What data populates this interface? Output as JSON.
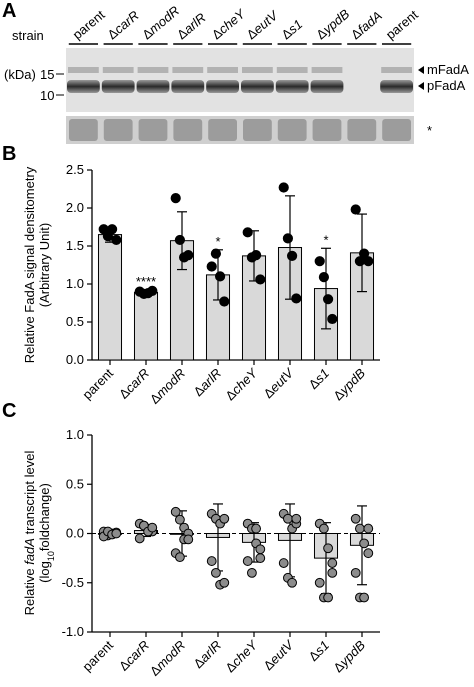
{
  "panels": {
    "a": "A",
    "b": "B",
    "c": "C"
  },
  "blot": {
    "strain_label": "strain",
    "lanes": [
      {
        "delta": "",
        "name": "parent"
      },
      {
        "delta": "Δ",
        "name": "carR"
      },
      {
        "delta": "Δ",
        "name": "modR"
      },
      {
        "delta": "Δ",
        "name": "arlR"
      },
      {
        "delta": "Δ",
        "name": "cheY"
      },
      {
        "delta": "Δ",
        "name": "eutV"
      },
      {
        "delta": "Δ",
        "name": "s1"
      },
      {
        "delta": "Δ",
        "name": "ypdB"
      },
      {
        "delta": "Δ",
        "name": "fadA"
      },
      {
        "delta": "",
        "name": "parent"
      }
    ],
    "kda_label": "(kDa)",
    "markers": [
      "15",
      "10"
    ],
    "band_labels": [
      "mFadA",
      "pFadA"
    ],
    "loading_asterisk": "*"
  },
  "chart_data": [
    {
      "type": "bar",
      "ylabel_line1": "Relative FadA signal densitometry",
      "ylabel_line2": "(Arbitrary Unit)",
      "ylim": [
        0,
        2.5
      ],
      "yticks": [
        "0.0",
        "0.5",
        "1.0",
        "1.5",
        "2.0",
        "2.5"
      ],
      "categories": [
        {
          "delta": "",
          "name": "parent"
        },
        {
          "delta": "Δ",
          "name": "carR"
        },
        {
          "delta": "Δ",
          "name": "modR"
        },
        {
          "delta": "Δ",
          "name": "arlR"
        },
        {
          "delta": "Δ",
          "name": "cheY"
        },
        {
          "delta": "Δ",
          "name": "eutV"
        },
        {
          "delta": "Δ",
          "name": "s1"
        },
        {
          "delta": "Δ",
          "name": "ypdB"
        }
      ],
      "means": [
        1.65,
        0.89,
        1.57,
        1.12,
        1.37,
        1.48,
        0.94,
        1.41
      ],
      "sd": [
        0.1,
        0.03,
        0.38,
        0.33,
        0.33,
        0.68,
        0.53,
        0.51
      ],
      "points": [
        [
          1.72,
          1.63,
          1.72,
          1.58
        ],
        [
          0.9,
          0.87,
          0.88,
          0.91
        ],
        [
          2.13,
          1.58,
          1.35,
          1.38
        ],
        [
          1.23,
          1.4,
          1.1,
          0.77
        ],
        [
          1.68,
          1.35,
          1.38,
          1.06
        ],
        [
          2.27,
          1.6,
          1.37,
          0.81
        ],
        [
          1.3,
          1.09,
          0.8,
          0.54
        ],
        [
          1.98,
          1.3,
          1.4,
          1.3
        ]
      ],
      "significance": [
        "",
        "****",
        "",
        "*",
        "",
        "",
        "*",
        ""
      ],
      "bar_color": "#d9d9d9"
    },
    {
      "type": "bar",
      "ylabel_line1_pre": "Relative ",
      "ylabel_line1_ital": "fadA",
      "ylabel_line1_post": " transcript level",
      "ylabel_line2_pre": "(log",
      "ylabel_line2_sub": "10",
      "ylabel_line2_post": "foldchange)",
      "ylim": [
        -1.0,
        1.0
      ],
      "yticks": [
        "-1.0",
        "-0.5",
        "0.0",
        "0.5",
        "1.0"
      ],
      "categories": [
        {
          "delta": "",
          "name": "parent"
        },
        {
          "delta": "Δ",
          "name": "carR"
        },
        {
          "delta": "Δ",
          "name": "modR"
        },
        {
          "delta": "Δ",
          "name": "arlR"
        },
        {
          "delta": "Δ",
          "name": "cheY"
        },
        {
          "delta": "Δ",
          "name": "eutV"
        },
        {
          "delta": "Δ",
          "name": "s1"
        },
        {
          "delta": "Δ",
          "name": "ypdB"
        }
      ],
      "means": [
        0.0,
        0.03,
        0.0,
        -0.04,
        -0.09,
        -0.07,
        -0.25,
        -0.12
      ],
      "sd": [
        0.02,
        0.06,
        0.23,
        0.34,
        0.2,
        0.37,
        0.36,
        0.4
      ],
      "points": [
        [
          0.02,
          -0.02,
          0.0,
          0.01,
          -0.03,
          0.02,
          -0.01,
          0.0
        ],
        [
          0.1,
          0.08,
          0.04,
          0.02,
          -0.05,
          0.08,
          0.02,
          0.06
        ],
        [
          0.22,
          0.14,
          0.06,
          0.0,
          -0.2,
          -0.24,
          -0.06,
          -0.06
        ],
        [
          0.2,
          0.15,
          0.1,
          0.15,
          -0.28,
          -0.4,
          -0.52,
          -0.5
        ],
        [
          0.1,
          0.05,
          -0.1,
          -0.25,
          -0.28,
          -0.4,
          0.05,
          -0.16
        ],
        [
          0.2,
          0.15,
          0.05,
          0.1,
          -0.3,
          -0.45,
          -0.5,
          0.15
        ],
        [
          0.1,
          0.05,
          -0.15,
          -0.3,
          -0.5,
          -0.65,
          -0.65,
          -0.4
        ],
        [
          0.15,
          0.05,
          -0.1,
          -0.2,
          -0.4,
          -0.65,
          -0.65,
          0.05
        ]
      ],
      "bar_color": "#d9d9d9"
    }
  ]
}
